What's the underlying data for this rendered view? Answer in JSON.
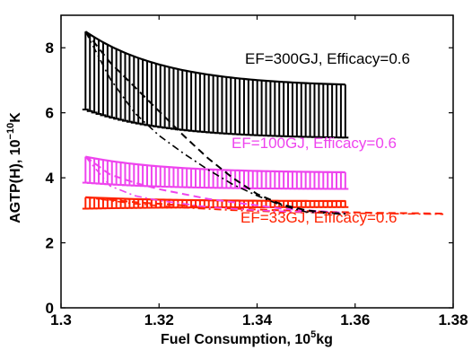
{
  "chart_data": {
    "type": "line",
    "title": "",
    "xlabel": {
      "main": "Fuel Consumption, 10",
      "sup": "5",
      "unit": "kg"
    },
    "ylabel": {
      "main": "AGTP(H), 10",
      "sup": "−10",
      "unit": "K"
    },
    "xlim": [
      1.3,
      1.38
    ],
    "ylim": [
      0,
      9
    ],
    "x_ticks": [
      1.3,
      1.32,
      1.34,
      1.36,
      1.38
    ],
    "x_tick_labels": [
      "1.3",
      "1.32",
      "1.34",
      "1.36",
      "1.38"
    ],
    "y_ticks": [
      0,
      2,
      4,
      6,
      8
    ],
    "y_tick_labels": [
      "0",
      "2",
      "4",
      "6",
      "8"
    ],
    "grid": false,
    "series": [
      {
        "label": "EF=300GJ, Efficacy=0.6",
        "color": "#000000",
        "x_start": 1.305,
        "x_end": 1.358,
        "y_start": 8.5,
        "y_end": 6.8,
        "err_top_start": 8.5,
        "err_top_end": 6.8,
        "err_bottom_start": 6.1,
        "err_bottom_end": 5.2,
        "dashed": [
          [
            1.305,
            8.5
          ],
          [
            1.31,
            7.55
          ],
          [
            1.315,
            6.8
          ],
          [
            1.32,
            6.05
          ],
          [
            1.325,
            5.3
          ],
          [
            1.33,
            4.6
          ],
          [
            1.335,
            4.0
          ],
          [
            1.34,
            3.5
          ],
          [
            1.345,
            3.18
          ],
          [
            1.35,
            3.0
          ],
          [
            1.355,
            2.92
          ],
          [
            1.358,
            2.9
          ]
        ],
        "dashdot": [
          [
            1.305,
            8.5
          ],
          [
            1.31,
            7.05
          ],
          [
            1.315,
            6.0
          ],
          [
            1.32,
            5.3
          ],
          [
            1.325,
            4.75
          ],
          [
            1.33,
            4.25
          ],
          [
            1.335,
            3.8
          ],
          [
            1.34,
            3.45
          ],
          [
            1.345,
            3.15
          ],
          [
            1.35,
            2.95
          ],
          [
            1.355,
            2.9
          ],
          [
            1.358,
            2.88
          ]
        ]
      },
      {
        "label": "EF=100GJ, Efficacy=0.6",
        "color": "#ee44ee",
        "x_start": 1.305,
        "x_end": 1.358,
        "y_start": 4.65,
        "y_end": 4.15,
        "err_top_start": 4.65,
        "err_top_end": 4.15,
        "err_bottom_start": 3.85,
        "err_bottom_end": 3.65,
        "dashed": [
          [
            1.305,
            4.65
          ],
          [
            1.31,
            4.1
          ],
          [
            1.315,
            3.85
          ],
          [
            1.32,
            3.65
          ],
          [
            1.325,
            3.5
          ],
          [
            1.33,
            3.35
          ],
          [
            1.335,
            3.25
          ],
          [
            1.34,
            3.15
          ],
          [
            1.345,
            3.05
          ],
          [
            1.35,
            3.0
          ],
          [
            1.355,
            2.95
          ],
          [
            1.358,
            2.92
          ]
        ],
        "dashdot": [
          [
            1.305,
            4.65
          ],
          [
            1.31,
            3.75
          ],
          [
            1.315,
            3.45
          ],
          [
            1.32,
            3.3
          ],
          [
            1.325,
            3.2
          ],
          [
            1.33,
            3.1
          ],
          [
            1.335,
            3.05
          ],
          [
            1.34,
            3.0
          ],
          [
            1.345,
            2.97
          ],
          [
            1.35,
            2.95
          ],
          [
            1.355,
            2.92
          ],
          [
            1.358,
            2.9
          ]
        ]
      },
      {
        "label": "EF=33GJ, Efficacy=0.6",
        "color": "#ff2200",
        "x_start": 1.305,
        "x_end": 1.358,
        "y_start": 3.4,
        "y_end": 3.28,
        "err_top_start": 3.4,
        "err_top_end": 3.3,
        "err_bottom_start": 3.05,
        "err_bottom_end": 3.1,
        "dashed": [
          [
            1.305,
            3.4
          ],
          [
            1.315,
            3.25
          ],
          [
            1.325,
            3.15
          ],
          [
            1.335,
            3.05
          ],
          [
            1.345,
            3.0
          ],
          [
            1.355,
            2.95
          ],
          [
            1.365,
            2.92
          ],
          [
            1.378,
            2.9
          ]
        ],
        "dashdot": [
          [
            1.305,
            3.4
          ],
          [
            1.315,
            3.2
          ],
          [
            1.325,
            3.08
          ],
          [
            1.335,
            3.0
          ],
          [
            1.345,
            2.95
          ],
          [
            1.355,
            2.92
          ],
          [
            1.365,
            2.9
          ],
          [
            1.378,
            2.88
          ]
        ]
      }
    ],
    "colors": {
      "black": "#000000",
      "magenta": "#ee44ee",
      "red": "#ff2200"
    }
  }
}
